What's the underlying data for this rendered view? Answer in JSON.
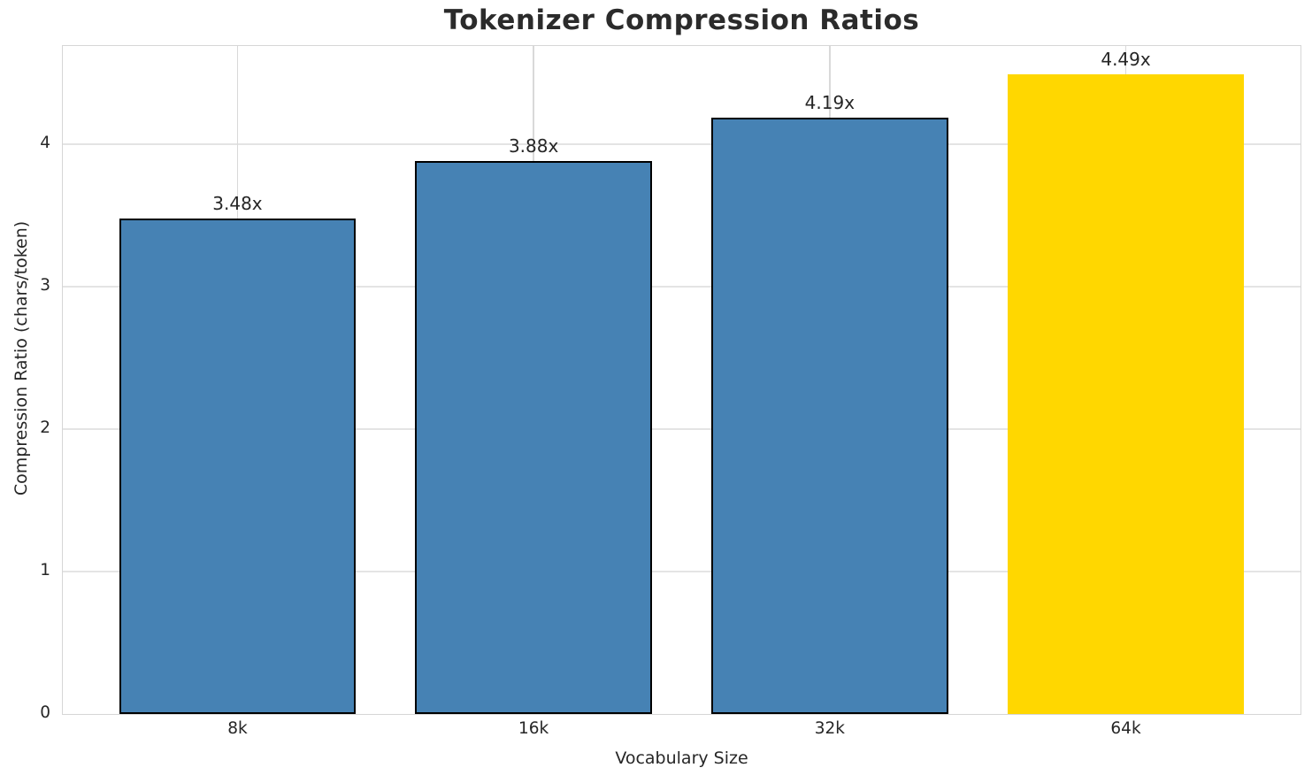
{
  "chart_data": {
    "type": "bar",
    "title": "Tokenizer Compression Ratios",
    "xlabel": "Vocabulary Size",
    "ylabel": "Compression Ratio (chars/token)",
    "categories": [
      "8k",
      "16k",
      "32k",
      "64k"
    ],
    "values": [
      3.48,
      3.88,
      4.19,
      4.49
    ],
    "bar_labels": [
      "3.48x",
      "3.88x",
      "4.19x",
      "4.49x"
    ],
    "bar_colors": [
      "#4682B4",
      "#4682B4",
      "#4682B4",
      "#FFD700"
    ],
    "bar_edge_colors": [
      "#000000",
      "#000000",
      "#000000",
      "#FFD700"
    ],
    "yticks": [
      0,
      1,
      2,
      3,
      4
    ],
    "ylim": [
      0,
      4.69
    ],
    "grid": true,
    "legend": "none",
    "colors": {
      "bar_default": "#4682B4",
      "bar_highlight": "#FFD700",
      "bar_edge": "#000000",
      "grid": "#e0e0e0",
      "spine": "#d6d6d6",
      "text": "#262626"
    }
  }
}
